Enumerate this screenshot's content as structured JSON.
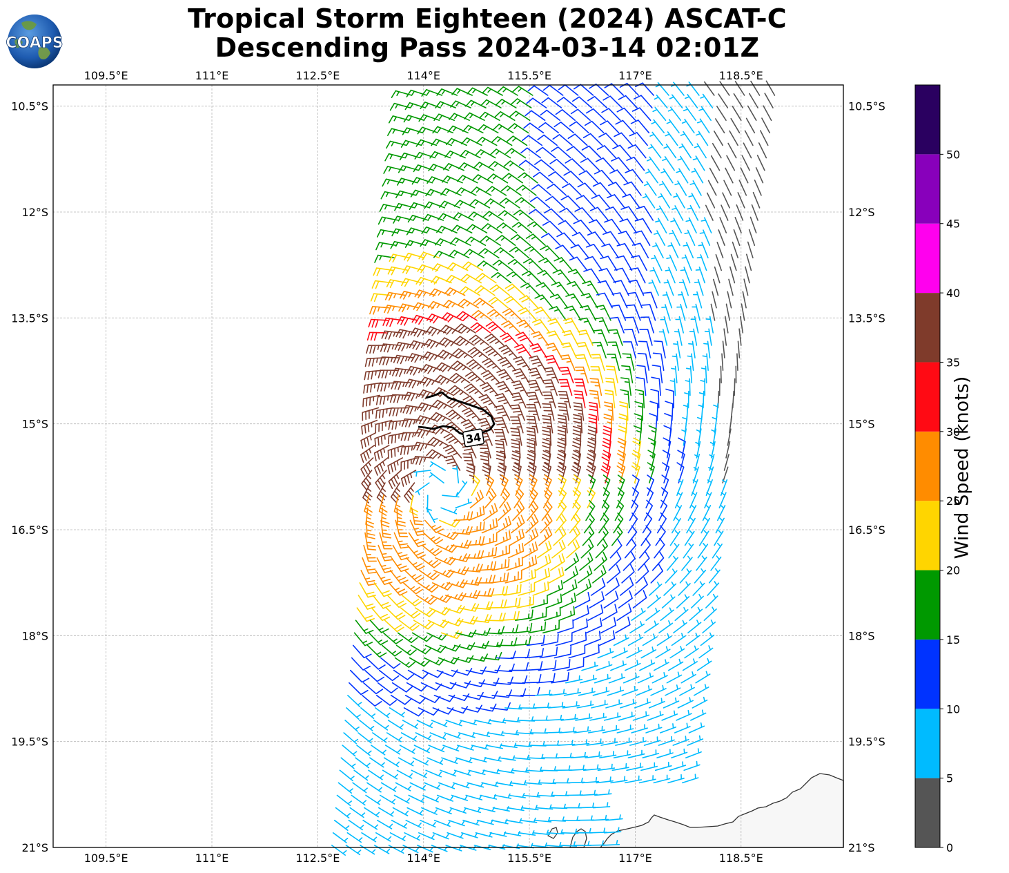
{
  "title": {
    "line1": "Tropical Storm Eighteen (2024) ASCAT-C",
    "line2": "Descending Pass 2024-03-14 02:01Z"
  },
  "logo": {
    "text": "COAPS",
    "icon": "globe-icon"
  },
  "map": {
    "lon_range": [
      108.75,
      119.95
    ],
    "lat_range": [
      -21.0,
      -10.2
    ],
    "lon_ticks": [
      "109.5°E",
      "111°E",
      "112.5°E",
      "114°E",
      "115.5°E",
      "117°E",
      "118.5°E"
    ],
    "lon_tick_values": [
      109.5,
      111.0,
      112.5,
      114.0,
      115.5,
      117.0,
      118.5
    ],
    "lat_ticks": [
      "10.5°S",
      "12°S",
      "13.5°S",
      "15°S",
      "16.5°S",
      "18°S",
      "19.5°S",
      "21°S"
    ],
    "lat_tick_values": [
      -10.5,
      -12.0,
      -13.5,
      -15.0,
      -16.5,
      -18.0,
      -19.5,
      -21.0
    ],
    "gridlines": true,
    "contour_label": "34",
    "contour_kt": 34
  },
  "storm": {
    "center_lon": 114.25,
    "center_lat": -15.95
  },
  "swath": {
    "top_left": [
      113.85,
      -10.2
    ],
    "top_right": [
      119.0,
      -10.2
    ],
    "bottom_left": [
      112.7,
      -21.0
    ],
    "bottom_right": [
      117.55,
      -21.0
    ]
  },
  "colorbar": {
    "label": "Wind Speed (knots)",
    "ticks": [
      "0",
      "5",
      "10",
      "15",
      "20",
      "25",
      "30",
      "35",
      "40",
      "45",
      "50"
    ],
    "bins": [
      {
        "min": 0,
        "max": 5,
        "color": "#555555"
      },
      {
        "min": 5,
        "max": 10,
        "color": "#00bbff"
      },
      {
        "min": 10,
        "max": 15,
        "color": "#0033ff"
      },
      {
        "min": 15,
        "max": 20,
        "color": "#009900"
      },
      {
        "min": 20,
        "max": 25,
        "color": "#ffd500"
      },
      {
        "min": 25,
        "max": 30,
        "color": "#ff8c00"
      },
      {
        "min": 30,
        "max": 35,
        "color": "#ff0a14"
      },
      {
        "min": 35,
        "max": 40,
        "color": "#7f3b2b"
      },
      {
        "min": 40,
        "max": 45,
        "color": "#ff00ee"
      },
      {
        "min": 45,
        "max": 50,
        "color": "#8800bb"
      },
      {
        "min": 50,
        "max": 55,
        "color": "#2a0060"
      }
    ]
  }
}
